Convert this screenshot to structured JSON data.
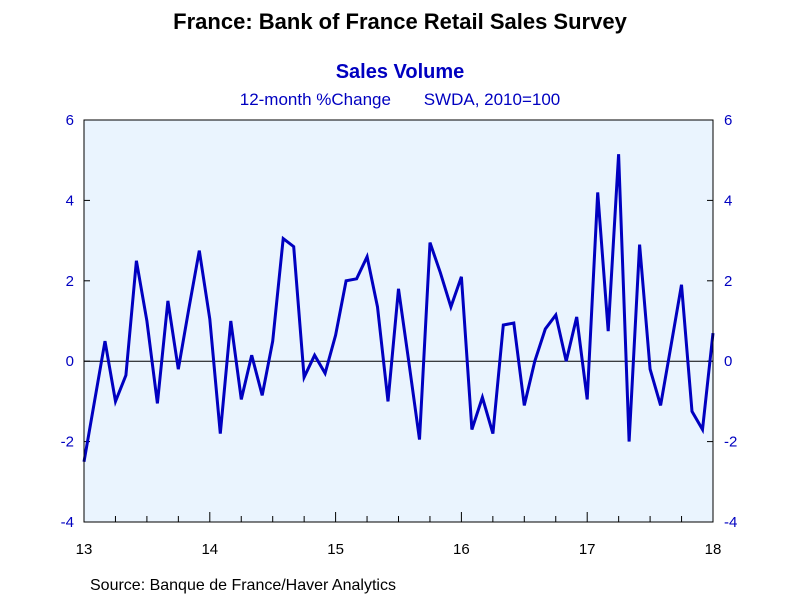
{
  "title": "France: Bank of France Retail Sales Survey",
  "chart_data": {
    "type": "line",
    "title": "Sales Volume",
    "units_note": "12-month %Change",
    "basis_note": "SWDA, 2010=100",
    "source": "Source:  Banque de France/Haver Analytics",
    "x_tick_labels": [
      "13",
      "14",
      "15",
      "16",
      "17",
      "18"
    ],
    "y_tick_labels": [
      "6",
      "4",
      "2",
      "0",
      "-2",
      "-4"
    ],
    "ylim": [
      -4,
      6
    ],
    "y_ticks": [
      6,
      4,
      2,
      0,
      -2,
      -4
    ],
    "xlim": [
      "2013-01",
      "2018-01"
    ],
    "left_axis": true,
    "right_axis": true,
    "grid": false,
    "zero_line": true,
    "colors": {
      "line": "#0000c0",
      "text_accent": "#0000c0",
      "plot_background": "#eaf4fe",
      "axis": "#000000"
    },
    "series": [
      {
        "x": [
          "2013-01",
          "2013-02",
          "2013-03",
          "2013-04",
          "2013-05",
          "2013-06",
          "2013-07",
          "2013-08",
          "2013-09",
          "2013-10",
          "2013-11",
          "2013-12",
          "2014-01",
          "2014-02",
          "2014-03",
          "2014-04",
          "2014-05",
          "2014-06",
          "2014-07",
          "2014-08",
          "2014-09",
          "2014-10",
          "2014-11",
          "2014-12",
          "2015-01",
          "2015-02",
          "2015-03",
          "2015-04",
          "2015-05",
          "2015-06",
          "2015-07",
          "2015-08",
          "2015-09",
          "2015-10",
          "2015-11",
          "2015-12",
          "2016-01",
          "2016-02",
          "2016-03",
          "2016-04",
          "2016-05",
          "2016-06",
          "2016-07",
          "2016-08",
          "2016-09",
          "2016-10",
          "2016-11",
          "2016-12",
          "2017-01",
          "2017-02",
          "2017-03",
          "2017-04",
          "2017-05",
          "2017-06",
          "2017-07",
          "2017-08",
          "2017-09",
          "2017-10",
          "2017-11",
          "2017-12",
          "2018-01"
        ],
        "values": [
          -2.5,
          -1.0,
          0.5,
          -1.0,
          -0.35,
          2.5,
          1.0,
          -1.05,
          1.5,
          -0.2,
          1.3,
          2.75,
          1.05,
          -1.8,
          1.0,
          -0.95,
          0.15,
          -0.85,
          0.5,
          3.05,
          2.85,
          -0.4,
          0.15,
          -0.3,
          0.65,
          2.0,
          2.05,
          2.6,
          1.35,
          -1.0,
          1.8,
          -0.05,
          -1.95,
          2.95,
          2.2,
          1.35,
          2.1,
          -1.7,
          -0.9,
          -1.8,
          0.9,
          0.95,
          -1.1,
          0.0,
          0.8,
          1.15,
          0.0,
          1.1,
          -0.95,
          4.2,
          0.75,
          5.15,
          -2.0,
          2.9,
          -0.2,
          -1.1,
          0.4,
          1.9,
          -1.25,
          -1.7,
          0.7
        ]
      }
    ]
  }
}
